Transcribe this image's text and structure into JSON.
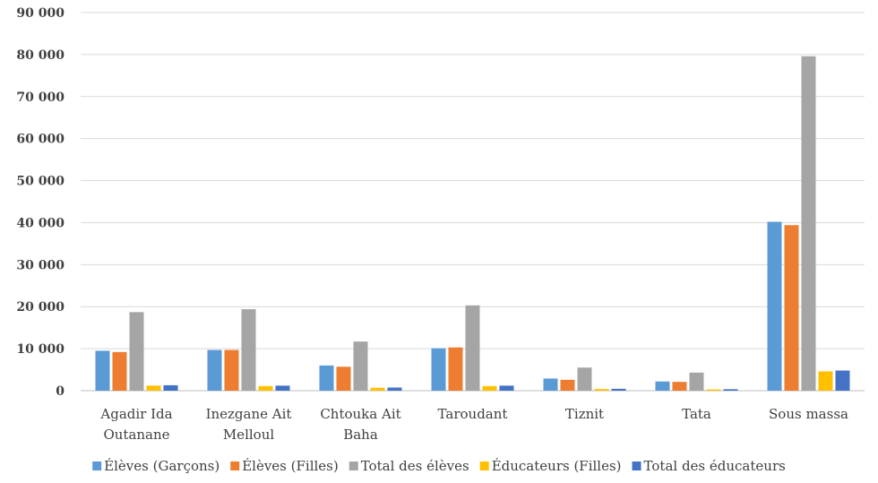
{
  "chart_data": {
    "type": "bar",
    "title": "",
    "xlabel": "",
    "ylabel": "",
    "ylim": [
      0,
      90000
    ],
    "yticks": [
      0,
      10000,
      20000,
      30000,
      40000,
      50000,
      60000,
      70000,
      80000,
      90000
    ],
    "ytick_labels": [
      "0",
      "10 000",
      "20 000",
      "30 000",
      "40 000",
      "50 000",
      "60 000",
      "70 000",
      "80 000",
      "90 000"
    ],
    "grid": true,
    "legend_position": "bottom",
    "categories": [
      [
        "Agadir Ida",
        "Outanane"
      ],
      [
        "Inezgane Ait",
        "Melloul"
      ],
      [
        "Chtouka Ait",
        "Baha"
      ],
      [
        "Taroudant"
      ],
      [
        "Tiznit"
      ],
      [
        "Tata"
      ],
      [
        "Sous massa"
      ]
    ],
    "series": [
      {
        "name": "Élèves (Garçons)",
        "color": "#5B9BD5",
        "values": [
          9500,
          9700,
          6000,
          10100,
          2900,
          2200,
          40200
        ]
      },
      {
        "name": "Élèves (Filles)",
        "color": "#ED7D31",
        "values": [
          9200,
          9700,
          5700,
          10300,
          2600,
          2100,
          39400
        ]
      },
      {
        "name": "Total des élèves",
        "color": "#A5A5A5",
        "values": [
          18700,
          19400,
          11700,
          20300,
          5500,
          4300,
          79600
        ]
      },
      {
        "name": "Éducateurs (Filles)",
        "color": "#FFC000",
        "values": [
          1200,
          1100,
          700,
          1100,
          400,
          300,
          4600
        ]
      },
      {
        "name": "Total des éducateurs",
        "color": "#4472C4",
        "values": [
          1300,
          1200,
          750,
          1200,
          450,
          350,
          4800
        ]
      }
    ]
  }
}
